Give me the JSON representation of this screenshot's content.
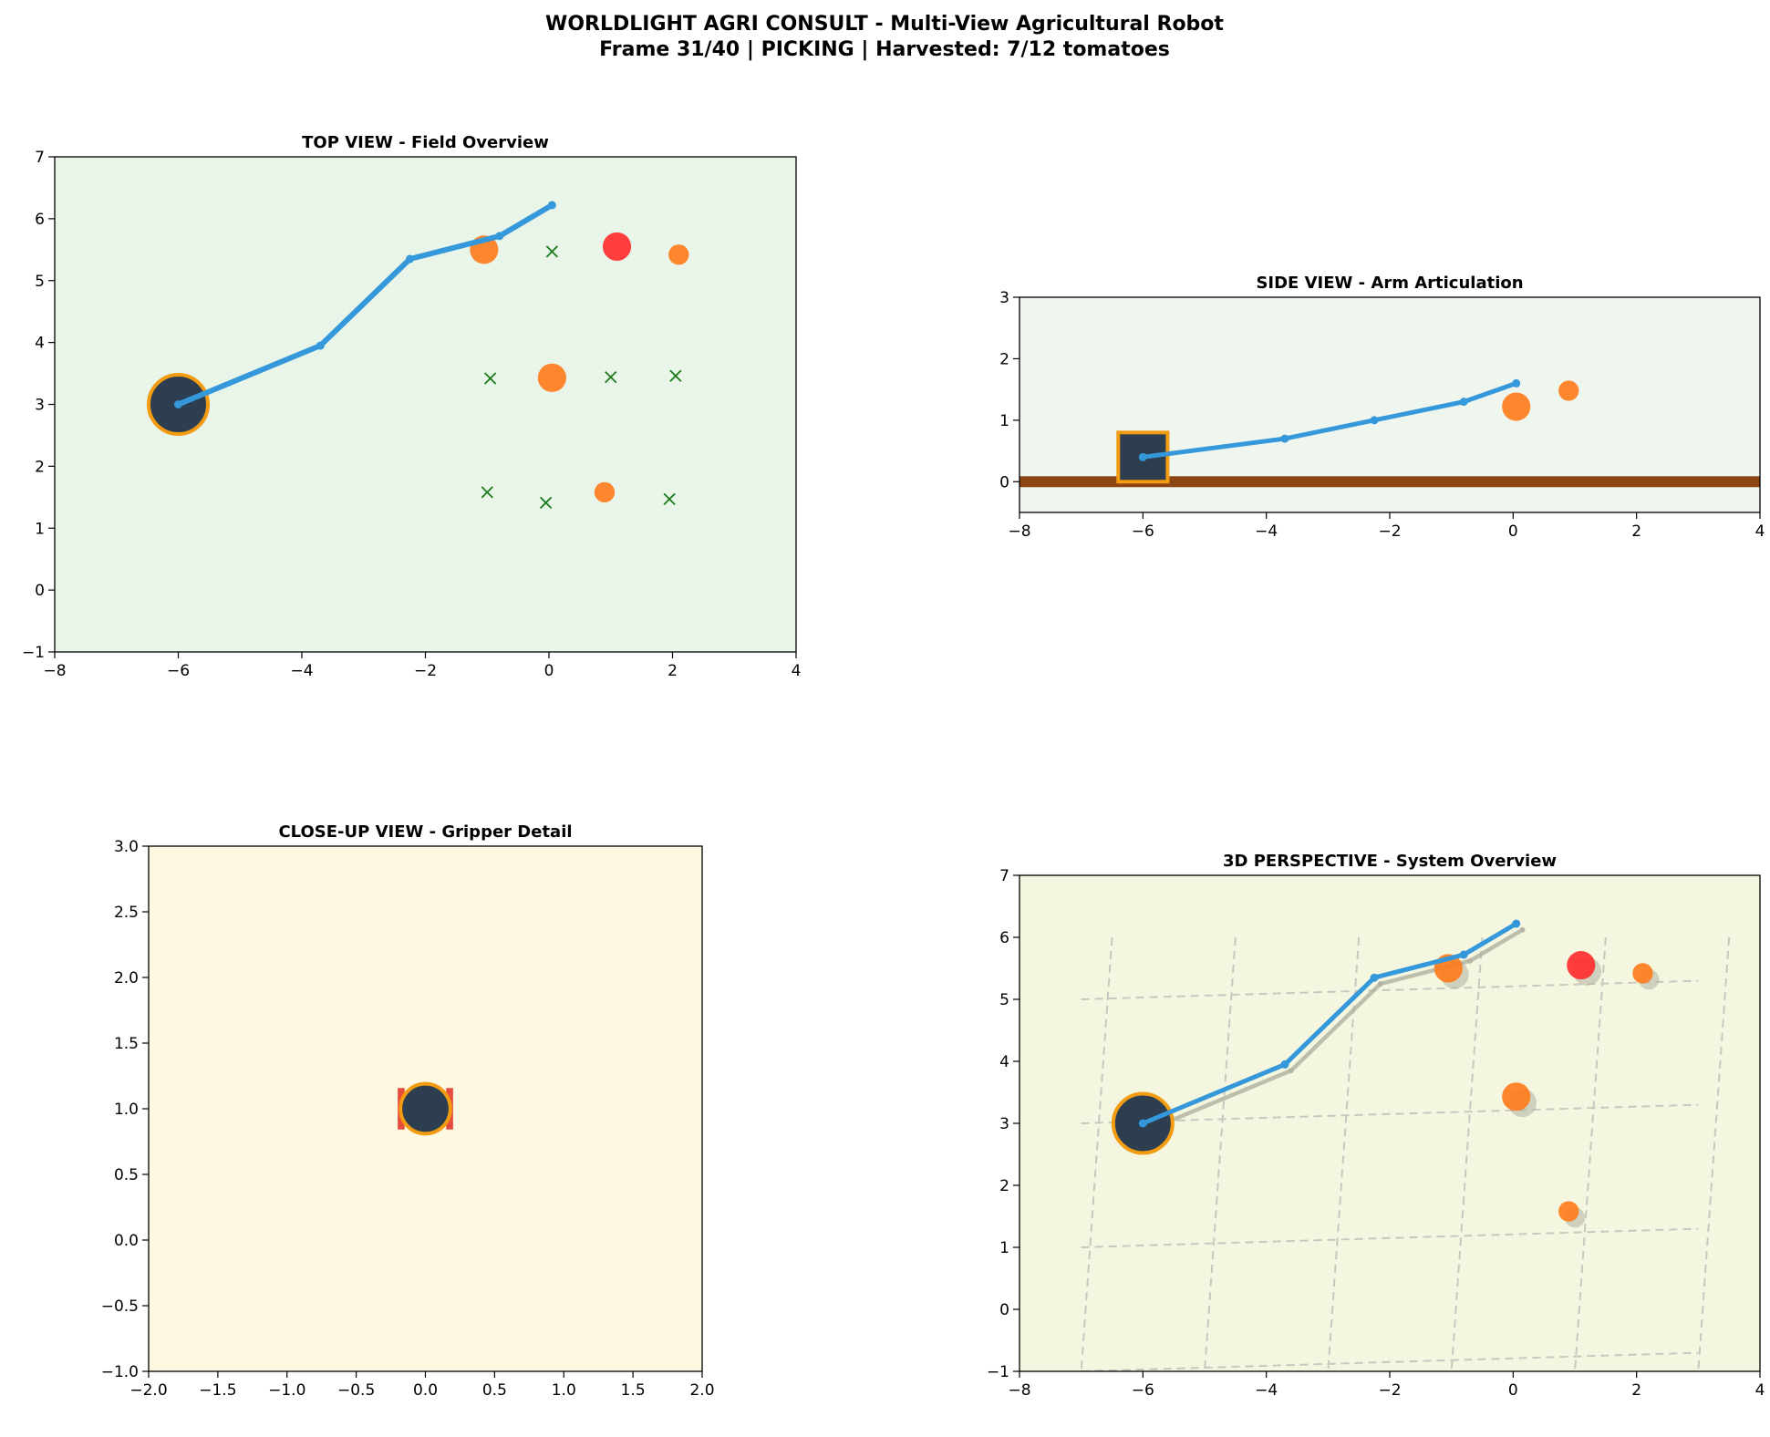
{
  "figure": {
    "title_line1": "WORLDLIGHT AGRI CONSULT - Multi-View Agricultural Robot",
    "title_line2": "Frame 31/40 | PICKING | Harvested: 7/12 tomatoes"
  },
  "colors": {
    "arm": "#3498db",
    "robot_body": "#2c3e50",
    "robot_edge": "#f39c12",
    "ripe_tomato": "#ff2a2a",
    "orange_tomato": "#ff7a1a",
    "harvested_marker": "#1a7a1a",
    "ground": "#8b4513",
    "gripper": "#e74c3c",
    "ghost": "#b0b0a0"
  },
  "chart_data": [
    {
      "id": "top",
      "type": "scatter",
      "title": "TOP VIEW - Field Overview",
      "xlim": [
        -8,
        4
      ],
      "ylim": [
        -1,
        7
      ],
      "xticks": [
        -8,
        -6,
        -4,
        -2,
        0,
        2,
        4
      ],
      "yticks": [
        -1,
        0,
        1,
        2,
        3,
        4,
        5,
        6,
        7
      ],
      "background": "#e8f5e8",
      "grid": false,
      "robot_base": {
        "x": -6,
        "y": 3
      },
      "arm_joints": [
        {
          "x": -6,
          "y": 3
        },
        {
          "x": -3.7,
          "y": 3.95
        },
        {
          "x": -2.25,
          "y": 5.35
        },
        {
          "x": -0.8,
          "y": 5.72
        },
        {
          "x": 0.05,
          "y": 6.22
        }
      ],
      "tomatoes": [
        {
          "x": -1.05,
          "y": 5.5,
          "ripeness": "orange",
          "size": "large"
        },
        {
          "x": 1.1,
          "y": 5.55,
          "ripeness": "ripe",
          "size": "large"
        },
        {
          "x": 2.1,
          "y": 5.42,
          "ripeness": "orange",
          "size": "small"
        },
        {
          "x": 0.05,
          "y": 3.43,
          "ripeness": "orange",
          "size": "large"
        },
        {
          "x": 0.9,
          "y": 1.58,
          "ripeness": "orange",
          "size": "small"
        }
      ],
      "harvested": [
        {
          "x": 0.05,
          "y": 5.47
        },
        {
          "x": -0.95,
          "y": 3.42
        },
        {
          "x": 1.0,
          "y": 3.44
        },
        {
          "x": 2.05,
          "y": 3.46
        },
        {
          "x": -1.0,
          "y": 1.58
        },
        {
          "x": -0.05,
          "y": 1.41
        },
        {
          "x": 1.95,
          "y": 1.47
        }
      ]
    },
    {
      "id": "side",
      "type": "scatter",
      "title": "SIDE VIEW - Arm Articulation",
      "xlim": [
        -8,
        4
      ],
      "ylim": [
        -0.5,
        3
      ],
      "xticks": [
        -8,
        -6,
        -4,
        -2,
        0,
        2,
        4
      ],
      "yticks": [
        0,
        1,
        2,
        3
      ],
      "background": "#eef6ee",
      "grid": false,
      "ground_y": 0,
      "robot_box": {
        "x0": -6.4,
        "x1": -5.6,
        "y0": 0,
        "y1": 0.8
      },
      "arm_joints": [
        {
          "x": -6,
          "y": 0.4
        },
        {
          "x": -3.7,
          "y": 0.7
        },
        {
          "x": -2.25,
          "y": 1.0
        },
        {
          "x": -0.8,
          "y": 1.3
        },
        {
          "x": 0.05,
          "y": 1.6
        }
      ],
      "tomatoes": [
        {
          "x": 0.05,
          "y": 1.22,
          "ripeness": "orange",
          "size": "large"
        },
        {
          "x": 0.9,
          "y": 1.48,
          "ripeness": "orange",
          "size": "small"
        }
      ]
    },
    {
      "id": "close",
      "type": "scatter",
      "title": "CLOSE-UP VIEW - Gripper Detail",
      "xlim": [
        -2,
        2
      ],
      "ylim": [
        -1,
        3
      ],
      "xticks": [
        -2.0,
        -1.5,
        -1.0,
        -0.5,
        0.0,
        0.5,
        1.0,
        1.5,
        2.0
      ],
      "yticks": [
        -1.0,
        -0.5,
        0.0,
        0.5,
        1.0,
        1.5,
        2.0,
        2.5,
        3.0
      ],
      "background": "#fdf8e2",
      "grid": false,
      "gripper_center": {
        "x": 0,
        "y": 1
      },
      "gripper_radius": 0.18,
      "gripper_fingers": [
        {
          "x0": -0.2,
          "x1": -0.15
        },
        {
          "x0": 0.15,
          "x1": 0.2
        }
      ]
    },
    {
      "id": "persp",
      "type": "scatter",
      "title": "3D PERSPECTIVE - System Overview",
      "xlim": [
        -8,
        4
      ],
      "ylim": [
        -1,
        7
      ],
      "xticks": [
        -8,
        -6,
        -4,
        -2,
        0,
        2,
        4
      ],
      "yticks": [
        -1,
        0,
        1,
        2,
        3,
        4,
        5,
        6,
        7
      ],
      "background": "#f4f6e0",
      "grid": true,
      "robot_base": {
        "x": -6,
        "y": 3
      },
      "arm_joints": [
        {
          "x": -6,
          "y": 3
        },
        {
          "x": -3.7,
          "y": 3.95
        },
        {
          "x": -2.25,
          "y": 5.35
        },
        {
          "x": -0.8,
          "y": 5.72
        },
        {
          "x": 0.05,
          "y": 6.22
        }
      ],
      "shadow_joints": [
        {
          "x": -5.9,
          "y": 2.9
        },
        {
          "x": -3.6,
          "y": 3.85
        },
        {
          "x": -2.15,
          "y": 5.25
        },
        {
          "x": -0.7,
          "y": 5.62
        },
        {
          "x": 0.15,
          "y": 6.12
        }
      ],
      "tomatoes": [
        {
          "x": -1.05,
          "y": 5.5,
          "ripeness": "orange",
          "size": "large"
        },
        {
          "x": 1.1,
          "y": 5.55,
          "ripeness": "ripe",
          "size": "large"
        },
        {
          "x": 2.1,
          "y": 5.42,
          "ripeness": "orange",
          "size": "small"
        },
        {
          "x": 0.05,
          "y": 3.43,
          "ripeness": "orange",
          "size": "large"
        },
        {
          "x": 0.9,
          "y": 1.58,
          "ripeness": "orange",
          "size": "small"
        }
      ],
      "shadow_tomatoes": [
        {
          "x": -0.95,
          "y": 5.4,
          "size": "large"
        },
        {
          "x": 1.2,
          "y": 5.45,
          "size": "large"
        },
        {
          "x": 2.2,
          "y": 5.32,
          "size": "small"
        },
        {
          "x": 0.15,
          "y": 3.33,
          "size": "large"
        },
        {
          "x": 1.0,
          "y": 1.48,
          "size": "small"
        }
      ],
      "grid_lines_h": [
        [
          {
            "x": -7,
            "y": 5
          },
          {
            "x": 3,
            "y": 5.3
          }
        ],
        [
          {
            "x": -7,
            "y": 3
          },
          {
            "x": 3,
            "y": 3.3
          }
        ],
        [
          {
            "x": -7,
            "y": 1
          },
          {
            "x": 3,
            "y": 1.3
          }
        ],
        [
          {
            "x": -7,
            "y": -1
          },
          {
            "x": 3,
            "y": -0.7
          }
        ]
      ],
      "grid_lines_v": [
        [
          {
            "x": -6.5,
            "y": 6
          },
          {
            "x": -7,
            "y": -1
          }
        ],
        [
          {
            "x": -4.5,
            "y": 6
          },
          {
            "x": -5,
            "y": -1
          }
        ],
        [
          {
            "x": -2.5,
            "y": 6
          },
          {
            "x": -3,
            "y": -1
          }
        ],
        [
          {
            "x": -0.5,
            "y": 6
          },
          {
            "x": -1,
            "y": -1
          }
        ],
        [
          {
            "x": 1.5,
            "y": 6
          },
          {
            "x": 1,
            "y": -1
          }
        ],
        [
          {
            "x": 3.5,
            "y": 6
          },
          {
            "x": 3,
            "y": -1
          }
        ]
      ]
    }
  ]
}
